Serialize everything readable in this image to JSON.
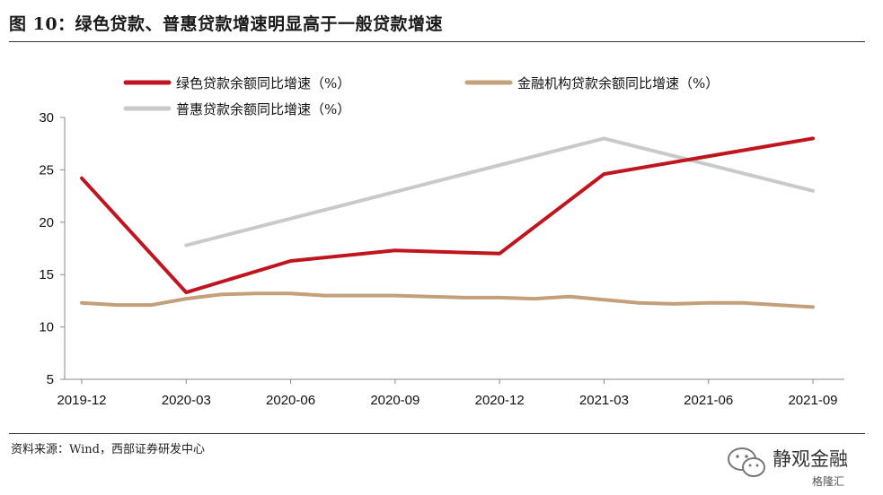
{
  "header": {
    "title": "图 10：绿色贷款、普惠贷款增速明显高于一般贷款增速"
  },
  "footer": {
    "source": "资料来源：Wind，西部证券研发中心"
  },
  "watermark": {
    "text": "静观金融",
    "sub": "格隆汇"
  },
  "chart_data": {
    "type": "line",
    "x": [
      "2019-12",
      "2020-01",
      "2020-02",
      "2020-03",
      "2020-04",
      "2020-05",
      "2020-06",
      "2020-07",
      "2020-08",
      "2020-09",
      "2020-10",
      "2020-11",
      "2020-12",
      "2021-01",
      "2021-02",
      "2021-03",
      "2021-04",
      "2021-05",
      "2021-06",
      "2021-07",
      "2021-08",
      "2021-09"
    ],
    "xticks": [
      "2019-12",
      "2020-03",
      "2020-06",
      "2020-09",
      "2020-12",
      "2021-03",
      "2021-06",
      "2021-09"
    ],
    "ylim": [
      5,
      30
    ],
    "yticks": [
      5,
      10,
      15,
      20,
      25,
      30
    ],
    "legend": "top",
    "grid": false,
    "series": [
      {
        "name": "绿色贷款余额同比增速（%）",
        "color": "#c0141f",
        "points": [
          [
            "2019-12",
            24.2
          ],
          [
            "2020-03",
            13.3
          ],
          [
            "2020-06",
            16.3
          ],
          [
            "2020-09",
            17.3
          ],
          [
            "2020-12",
            17.0
          ],
          [
            "2021-03",
            24.6
          ],
          [
            "2021-09",
            28.0
          ]
        ]
      },
      {
        "name": "金融机构贷款余额同比增速（%）",
        "color": "#c4a07a",
        "points": [
          [
            "2019-12",
            12.3
          ],
          [
            "2020-01",
            12.1
          ],
          [
            "2020-02",
            12.1
          ],
          [
            "2020-03",
            12.7
          ],
          [
            "2020-04",
            13.1
          ],
          [
            "2020-05",
            13.2
          ],
          [
            "2020-06",
            13.2
          ],
          [
            "2020-07",
            13.0
          ],
          [
            "2020-08",
            13.0
          ],
          [
            "2020-09",
            13.0
          ],
          [
            "2020-10",
            12.9
          ],
          [
            "2020-11",
            12.8
          ],
          [
            "2020-12",
            12.8
          ],
          [
            "2021-01",
            12.7
          ],
          [
            "2021-02",
            12.9
          ],
          [
            "2021-03",
            12.6
          ],
          [
            "2021-04",
            12.3
          ],
          [
            "2021-05",
            12.2
          ],
          [
            "2021-06",
            12.3
          ],
          [
            "2021-07",
            12.3
          ],
          [
            "2021-08",
            12.1
          ],
          [
            "2021-09",
            11.9
          ]
        ]
      },
      {
        "name": "普惠贷款余额同比增速（%）",
        "color": "#c9c9c9",
        "points": [
          [
            "2020-03",
            17.8
          ],
          [
            "2021-03",
            28.0
          ],
          [
            "2021-09",
            23.0
          ]
        ]
      }
    ]
  }
}
